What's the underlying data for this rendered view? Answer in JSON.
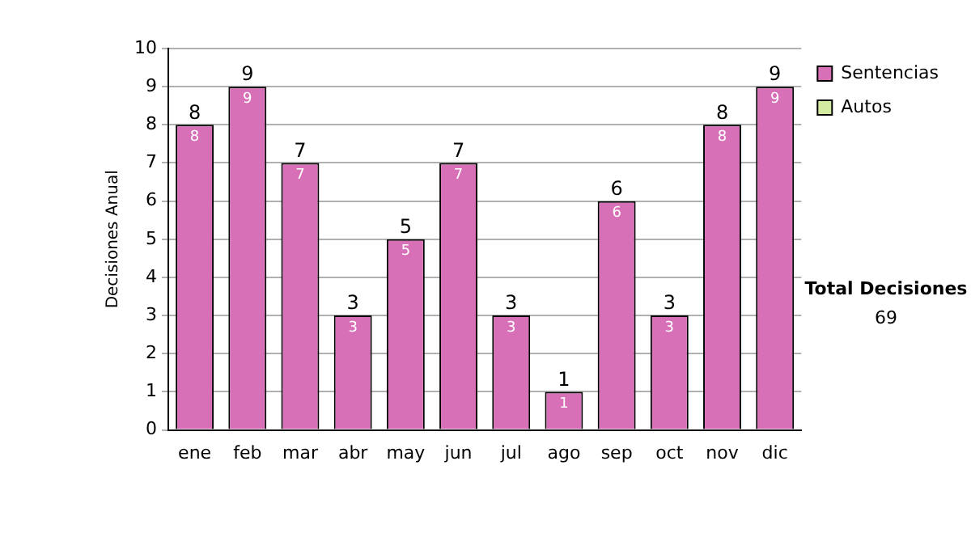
{
  "chart_data": {
    "type": "bar",
    "stacked": true,
    "ylabel": "Decisiones Anual",
    "categories": [
      "ene",
      "feb",
      "mar",
      "abr",
      "may",
      "jun",
      "jul",
      "ago",
      "sep",
      "oct",
      "nov",
      "dic"
    ],
    "series": [
      {
        "name": "Sentencias",
        "color": "#d870b8",
        "values": [
          8,
          9,
          7,
          3,
          5,
          7,
          3,
          1,
          6,
          3,
          8,
          9
        ],
        "value_labels": [
          "8",
          "9",
          "7",
          "3",
          "5",
          "7",
          "3",
          "1",
          "6",
          "3",
          "8",
          "9"
        ]
      },
      {
        "name": "Autos",
        "color": "#d4eaa0",
        "values": [
          0,
          0,
          0,
          0,
          0,
          0,
          0,
          0,
          0,
          0,
          0,
          0
        ],
        "value_labels": [
          null,
          null,
          null,
          null,
          null,
          null,
          null,
          null,
          null,
          null,
          null,
          null
        ]
      }
    ],
    "totals": [
      "8",
      "9",
      "7",
      "3",
      "5",
      "7",
      "3",
      "1",
      "6",
      "3",
      "8",
      "9"
    ],
    "ylim": [
      0,
      10
    ],
    "yticks": [
      0,
      1,
      2,
      3,
      4,
      5,
      6,
      7,
      8,
      9,
      10
    ],
    "grid": "y",
    "legend": "right",
    "annotations": [
      "Total Decisiones",
      "69"
    ]
  }
}
